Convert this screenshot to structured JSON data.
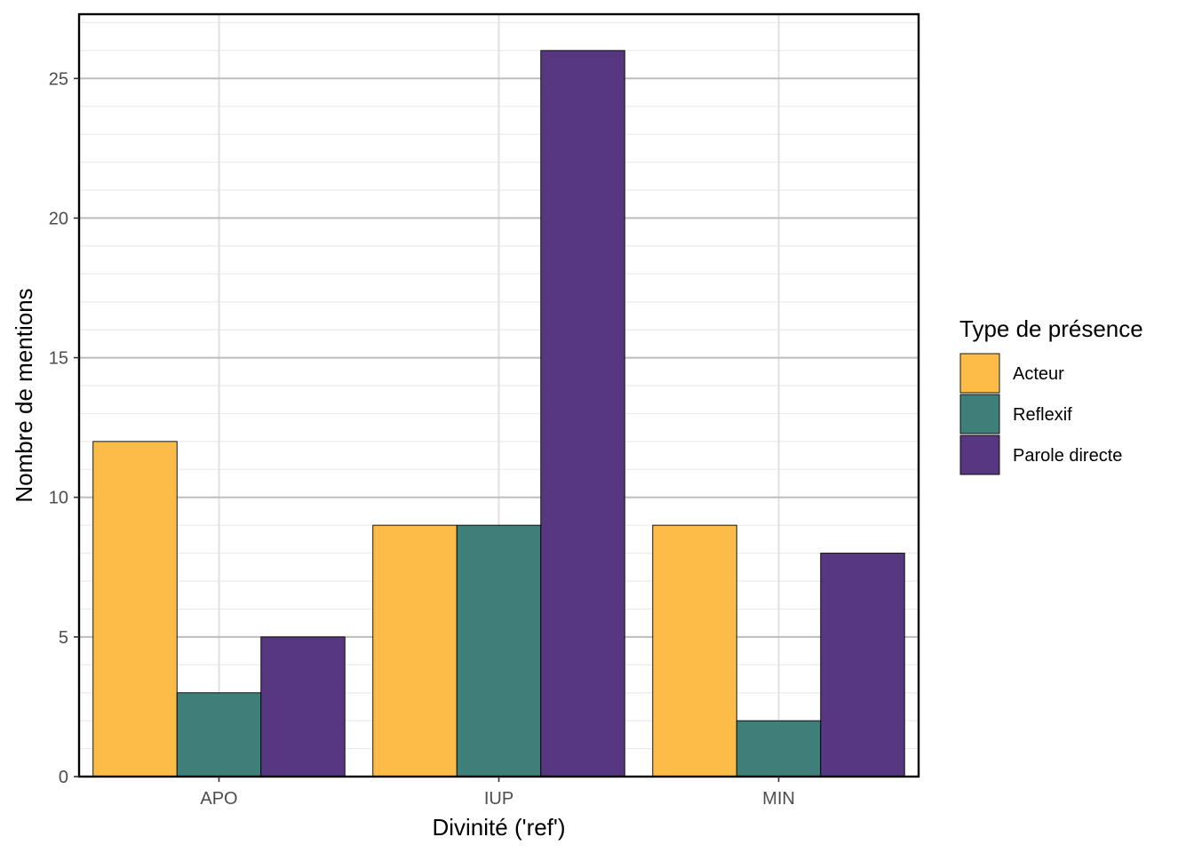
{
  "chart_data": {
    "type": "bar",
    "title": "",
    "xlabel": "Divinité ('ref')",
    "ylabel": "Nombre de mentions",
    "categories": [
      "APO",
      "IUP",
      "MIN"
    ],
    "series": [
      {
        "name": "Acteur",
        "color": "#FDBC47",
        "values": [
          12,
          9,
          9
        ]
      },
      {
        "name": "Reflexif",
        "color": "#3F7F7A",
        "values": [
          3,
          9,
          2
        ]
      },
      {
        "name": "Parole directe",
        "color": "#573880",
        "values": [
          5,
          26,
          8
        ]
      }
    ],
    "ylim": [
      0,
      27.3
    ],
    "yticks": [
      0,
      5,
      10,
      15,
      20,
      25
    ],
    "grid": true,
    "legend": {
      "title": "Type de présence",
      "position": "right"
    }
  }
}
